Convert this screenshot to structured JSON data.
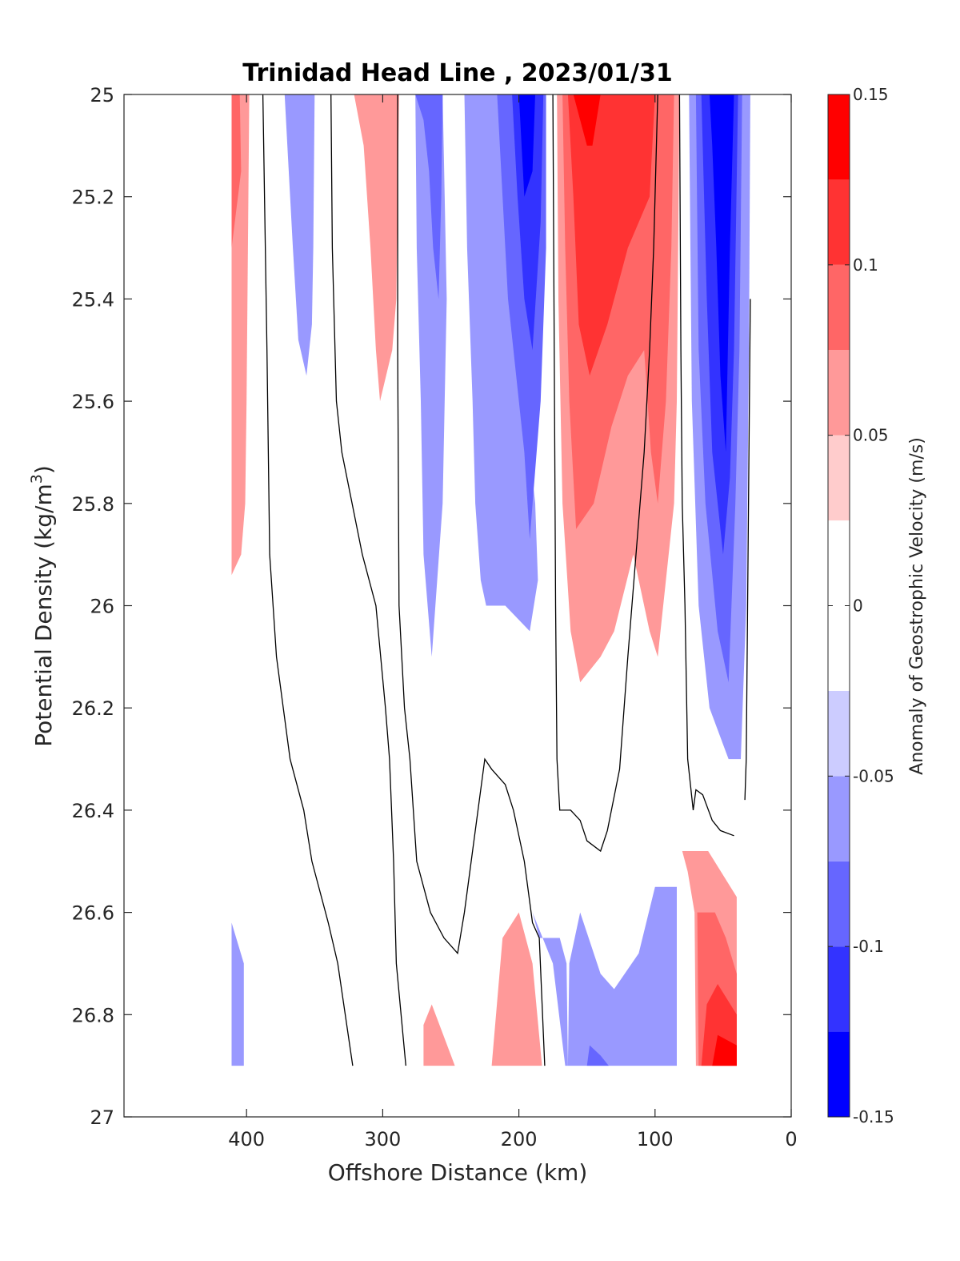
{
  "chart_data": {
    "type": "filled-contour",
    "title": "Trinidad Head Line , 2023/01/31",
    "xlabel": "Offshore Distance (km)",
    "ylabel_main": "Potential Density (kg/m",
    "ylabel_sup": "3",
    "ylabel_close": ")",
    "xlim": [
      490,
      0
    ],
    "ylim": [
      25,
      27
    ],
    "x_reversed": true,
    "y_reversed": true,
    "x_ticks": [
      400,
      300,
      200,
      100,
      0
    ],
    "x_tick_labels": [
      "400",
      "300",
      "200",
      "100",
      "0"
    ],
    "y_ticks": [
      25,
      25.2,
      25.4,
      25.6,
      25.8,
      26,
      26.2,
      26.4,
      26.6,
      26.8,
      27
    ],
    "y_tick_labels": [
      "25",
      "25.2",
      "25.4",
      "25.6",
      "25.8",
      "26",
      "26.2",
      "26.4",
      "26.6",
      "26.8",
      "27"
    ],
    "colorbar": {
      "label": "Anomaly of Geostrophic Velocity (m/s)",
      "levels": [
        -0.15,
        -0.125,
        -0.1,
        -0.075,
        -0.05,
        -0.025,
        0.025,
        0.05,
        0.075,
        0.1,
        0.125,
        0.15
      ],
      "colors": [
        "#0000ff",
        "#3333ff",
        "#6666ff",
        "#9999ff",
        "#ccccff",
        "#ffffff",
        "#ffcccc",
        "#ff9999",
        "#ff6666",
        "#ff3333",
        "#ff0000"
      ],
      "ticks": [
        0.15,
        0.1,
        0.05,
        0,
        -0.05,
        -0.1,
        -0.15
      ],
      "tick_labels": [
        "0.15",
        "0.1",
        "0.05",
        "0",
        "-0.05",
        "-0.1",
        "-0.15"
      ]
    },
    "filled_regions": [
      {
        "level": 0.05,
        "points": [
          [
            411,
            25
          ],
          [
            398,
            25
          ],
          [
            399,
            25.3
          ],
          [
            400,
            25.6
          ],
          [
            401,
            25.8
          ],
          [
            404,
            25.9
          ],
          [
            411,
            25.94
          ]
        ]
      },
      {
        "level": 0.075,
        "points": [
          [
            411,
            25
          ],
          [
            405,
            25
          ],
          [
            404,
            25.15
          ],
          [
            411,
            25.3
          ]
        ]
      },
      {
        "level": -0.05,
        "points": [
          [
            372,
            25
          ],
          [
            350,
            25
          ],
          [
            351,
            25.3
          ],
          [
            352,
            25.45
          ],
          [
            356,
            25.55
          ],
          [
            362,
            25.48
          ],
          [
            366,
            25.3
          ],
          [
            370,
            25.1
          ]
        ]
      },
      {
        "level": 0.05,
        "points": [
          [
            321,
            25
          ],
          [
            288,
            25
          ],
          [
            289,
            25.2
          ],
          [
            290,
            25.4
          ],
          [
            293,
            25.5
          ],
          [
            302,
            25.6
          ],
          [
            305,
            25.5
          ],
          [
            309,
            25.3
          ],
          [
            314,
            25.1
          ]
        ]
      },
      {
        "level": -0.05,
        "points": [
          [
            276,
            25
          ],
          [
            240,
            25
          ],
          [
            238,
            25.3
          ],
          [
            234,
            25.6
          ],
          [
            232,
            25.8
          ],
          [
            228,
            25.95
          ],
          [
            224,
            26
          ],
          [
            210,
            26
          ],
          [
            192,
            26.05
          ],
          [
            186,
            25.95
          ],
          [
            188,
            25.8
          ],
          [
            196,
            25.6
          ],
          [
            204,
            25.4
          ],
          [
            210,
            25.15
          ],
          [
            214,
            25
          ],
          [
            256,
            25
          ],
          [
            253,
            25.4
          ],
          [
            256,
            25.8
          ],
          [
            264,
            26.1
          ],
          [
            270,
            25.9
          ],
          [
            272,
            25.6
          ],
          [
            275,
            25.3
          ]
        ]
      },
      {
        "level": -0.075,
        "points": [
          [
            276,
            25
          ],
          [
            256,
            25
          ],
          [
            257,
            25.2
          ],
          [
            259,
            25.4
          ],
          [
            263,
            25.3
          ],
          [
            266,
            25.15
          ],
          [
            270,
            25.05
          ]
        ]
      },
      {
        "level": -0.075,
        "points": [
          [
            216,
            25
          ],
          [
            180,
            25
          ],
          [
            180,
            25.3
          ],
          [
            184,
            25.6
          ],
          [
            192,
            25.87
          ],
          [
            196,
            25.7
          ],
          [
            208,
            25.4
          ],
          [
            212,
            25.2
          ]
        ]
      },
      {
        "level": -0.1,
        "points": [
          [
            205,
            25
          ],
          [
            182,
            25
          ],
          [
            184,
            25.25
          ],
          [
            190,
            25.5
          ],
          [
            196,
            25.4
          ],
          [
            201,
            25.2
          ]
        ]
      },
      {
        "level": -0.125,
        "points": [
          [
            200,
            25
          ],
          [
            188,
            25
          ],
          [
            190,
            25.15
          ],
          [
            196,
            25.2
          ]
        ]
      },
      {
        "level": 0.05,
        "points": [
          [
            172,
            25
          ],
          [
            82,
            25
          ],
          [
            83,
            25.3
          ],
          [
            84,
            25.6
          ],
          [
            86,
            25.8
          ],
          [
            98,
            26.1
          ],
          [
            104,
            26.05
          ],
          [
            116,
            25.9
          ],
          [
            130,
            26.05
          ],
          [
            140,
            26.1
          ],
          [
            155,
            26.15
          ],
          [
            162,
            26.05
          ],
          [
            168,
            25.8
          ],
          [
            171,
            25.4
          ]
        ]
      },
      {
        "level": 0.075,
        "points": [
          [
            168,
            25
          ],
          [
            86,
            25
          ],
          [
            88,
            25.3
          ],
          [
            92,
            25.6
          ],
          [
            98,
            25.8
          ],
          [
            103,
            25.7
          ],
          [
            108,
            25.5
          ],
          [
            120,
            25.55
          ],
          [
            132,
            25.65
          ],
          [
            145,
            25.8
          ],
          [
            158,
            25.85
          ],
          [
            163,
            25.6
          ],
          [
            166,
            25.3
          ]
        ]
      },
      {
        "level": 0.1,
        "points": [
          [
            164,
            25
          ],
          [
            100,
            25
          ],
          [
            104,
            25.2
          ],
          [
            120,
            25.3
          ],
          [
            135,
            25.45
          ],
          [
            148,
            25.55
          ],
          [
            156,
            25.45
          ],
          [
            160,
            25.2
          ]
        ]
      },
      {
        "level": 0.125,
        "points": [
          [
            160,
            25
          ],
          [
            140,
            25
          ],
          [
            146,
            25.1
          ],
          [
            150,
            25.1
          ],
          [
            155,
            25.05
          ]
        ]
      },
      {
        "level": -0.05,
        "points": [
          [
            75,
            25
          ],
          [
            30,
            25
          ],
          [
            31,
            25.5
          ],
          [
            33,
            26
          ],
          [
            37,
            26.3
          ],
          [
            46,
            26.3
          ],
          [
            60,
            26.2
          ],
          [
            68,
            26
          ],
          [
            73,
            25.6
          ],
          [
            74,
            25.3
          ]
        ]
      },
      {
        "level": -0.075,
        "points": [
          [
            70,
            25
          ],
          [
            36,
            25
          ],
          [
            38,
            25.5
          ],
          [
            41,
            25.8
          ],
          [
            46,
            26.15
          ],
          [
            54,
            26.05
          ],
          [
            63,
            25.8
          ],
          [
            68,
            25.5
          ]
        ]
      },
      {
        "level": -0.1,
        "points": [
          [
            66,
            25
          ],
          [
            39,
            25
          ],
          [
            42,
            25.5
          ],
          [
            45,
            25.75
          ],
          [
            50,
            25.9
          ],
          [
            58,
            25.7
          ],
          [
            62,
            25.4
          ],
          [
            64,
            25.2
          ]
        ]
      },
      {
        "level": -0.125,
        "points": [
          [
            60,
            25
          ],
          [
            42,
            25
          ],
          [
            45,
            25.3
          ],
          [
            48,
            25.7
          ],
          [
            52,
            25.55
          ],
          [
            55,
            25.3
          ],
          [
            58,
            25.1
          ]
        ]
      },
      {
        "level": -0.05,
        "points": [
          [
            411,
            26.62
          ],
          [
            402,
            26.7
          ],
          [
            402,
            26.9
          ],
          [
            411,
            26.9
          ]
        ]
      },
      {
        "level": 0.05,
        "points": [
          [
            270,
            26.82
          ],
          [
            264,
            26.78
          ],
          [
            247,
            26.9
          ],
          [
            270,
            26.9
          ]
        ]
      },
      {
        "level": 0.05,
        "points": [
          [
            220,
            26.9
          ],
          [
            212,
            26.65
          ],
          [
            200,
            26.6
          ],
          [
            190,
            26.7
          ],
          [
            183,
            26.9
          ]
        ]
      },
      {
        "level": -0.05,
        "points": [
          [
            164,
            26.9
          ],
          [
            165,
            26.7
          ],
          [
            170,
            26.65
          ],
          [
            185,
            26.65
          ],
          [
            190,
            26.6
          ],
          [
            175,
            26.7
          ],
          [
            166,
            26.9
          ],
          [
            164,
            26.9
          ]
        ]
      },
      {
        "level": -0.05,
        "points": [
          [
            164,
            26.9
          ],
          [
            163,
            26.7
          ],
          [
            155,
            26.6
          ],
          [
            140,
            26.72
          ],
          [
            130,
            26.75
          ],
          [
            112,
            26.68
          ],
          [
            100,
            26.55
          ],
          [
            84,
            26.55
          ],
          [
            84,
            26.9
          ]
        ]
      },
      {
        "level": -0.075,
        "points": [
          [
            150,
            26.9
          ],
          [
            148,
            26.86
          ],
          [
            140,
            26.88
          ],
          [
            134,
            26.9
          ]
        ]
      },
      {
        "level": 0.05,
        "points": [
          [
            70,
            26.9
          ],
          [
            71,
            26.6
          ],
          [
            76,
            26.52
          ],
          [
            80,
            26.48
          ],
          [
            61,
            26.48
          ],
          [
            40,
            26.57
          ],
          [
            40,
            26.9
          ]
        ]
      },
      {
        "level": 0.075,
        "points": [
          [
            68,
            26.9
          ],
          [
            69,
            26.6
          ],
          [
            56,
            26.6
          ],
          [
            48,
            26.65
          ],
          [
            40,
            26.72
          ],
          [
            40,
            26.9
          ]
        ]
      },
      {
        "level": 0.1,
        "points": [
          [
            66,
            26.9
          ],
          [
            62,
            26.78
          ],
          [
            54,
            26.74
          ],
          [
            40,
            26.8
          ],
          [
            40,
            26.9
          ]
        ]
      },
      {
        "level": 0.125,
        "points": [
          [
            58,
            26.9
          ],
          [
            54,
            26.84
          ],
          [
            40,
            26.86
          ],
          [
            40,
            26.9
          ]
        ]
      }
    ],
    "zero_contours": [
      [
        [
          388,
          25
        ],
        [
          385,
          25.5
        ],
        [
          383,
          25.9
        ],
        [
          378,
          26.1
        ],
        [
          368,
          26.3
        ],
        [
          358,
          26.4
        ],
        [
          352,
          26.5
        ],
        [
          340,
          26.62
        ],
        [
          333,
          26.7
        ],
        [
          322,
          26.9
        ]
      ],
      [
        [
          338,
          25
        ],
        [
          337,
          25.3
        ],
        [
          334,
          25.6
        ],
        [
          330,
          25.7
        ],
        [
          318,
          25.86
        ],
        [
          315,
          25.9
        ],
        [
          305,
          26
        ],
        [
          298,
          26.2
        ],
        [
          295,
          26.3
        ],
        [
          292,
          26.5
        ],
        [
          290,
          26.7
        ],
        [
          283,
          26.9
        ]
      ],
      [
        [
          289,
          25
        ],
        [
          289,
          25.5
        ],
        [
          288,
          26
        ],
        [
          284,
          26.2
        ],
        [
          280,
          26.3
        ],
        [
          275,
          26.5
        ],
        [
          265,
          26.6
        ],
        [
          255,
          26.65
        ],
        [
          245,
          26.68
        ],
        [
          240,
          26.6
        ],
        [
          230,
          26.4
        ],
        [
          225,
          26.3
        ],
        [
          220,
          26.32
        ],
        [
          210,
          26.35
        ],
        [
          204,
          26.4
        ],
        [
          196,
          26.5
        ],
        [
          190,
          26.62
        ],
        [
          185,
          26.65
        ],
        [
          181,
          26.9
        ]
      ],
      [
        [
          175,
          25
        ],
        [
          174,
          25.5
        ],
        [
          173,
          26
        ],
        [
          172,
          26.3
        ],
        [
          170,
          26.4
        ],
        [
          162,
          26.4
        ],
        [
          155,
          26.42
        ],
        [
          150,
          26.46
        ],
        [
          140,
          26.48
        ],
        [
          135,
          26.44
        ],
        [
          126,
          26.32
        ],
        [
          120,
          26.1
        ],
        [
          114,
          25.9
        ],
        [
          108,
          25.7
        ],
        [
          104,
          25.5
        ],
        [
          101,
          25.3
        ],
        [
          98,
          25
        ]
      ],
      [
        [
          82,
          25
        ],
        [
          81,
          25.5
        ],
        [
          80,
          25.8
        ],
        [
          78,
          26
        ],
        [
          76,
          26.3
        ],
        [
          72,
          26.4
        ],
        [
          70,
          26.36
        ],
        [
          65,
          26.37
        ],
        [
          58,
          26.42
        ],
        [
          52,
          26.44
        ],
        [
          42,
          26.45
        ]
      ],
      [
        [
          30,
          25.4
        ],
        [
          31,
          25.7
        ],
        [
          32,
          26
        ],
        [
          33,
          26.3
        ],
        [
          34,
          26.38
        ]
      ]
    ]
  }
}
